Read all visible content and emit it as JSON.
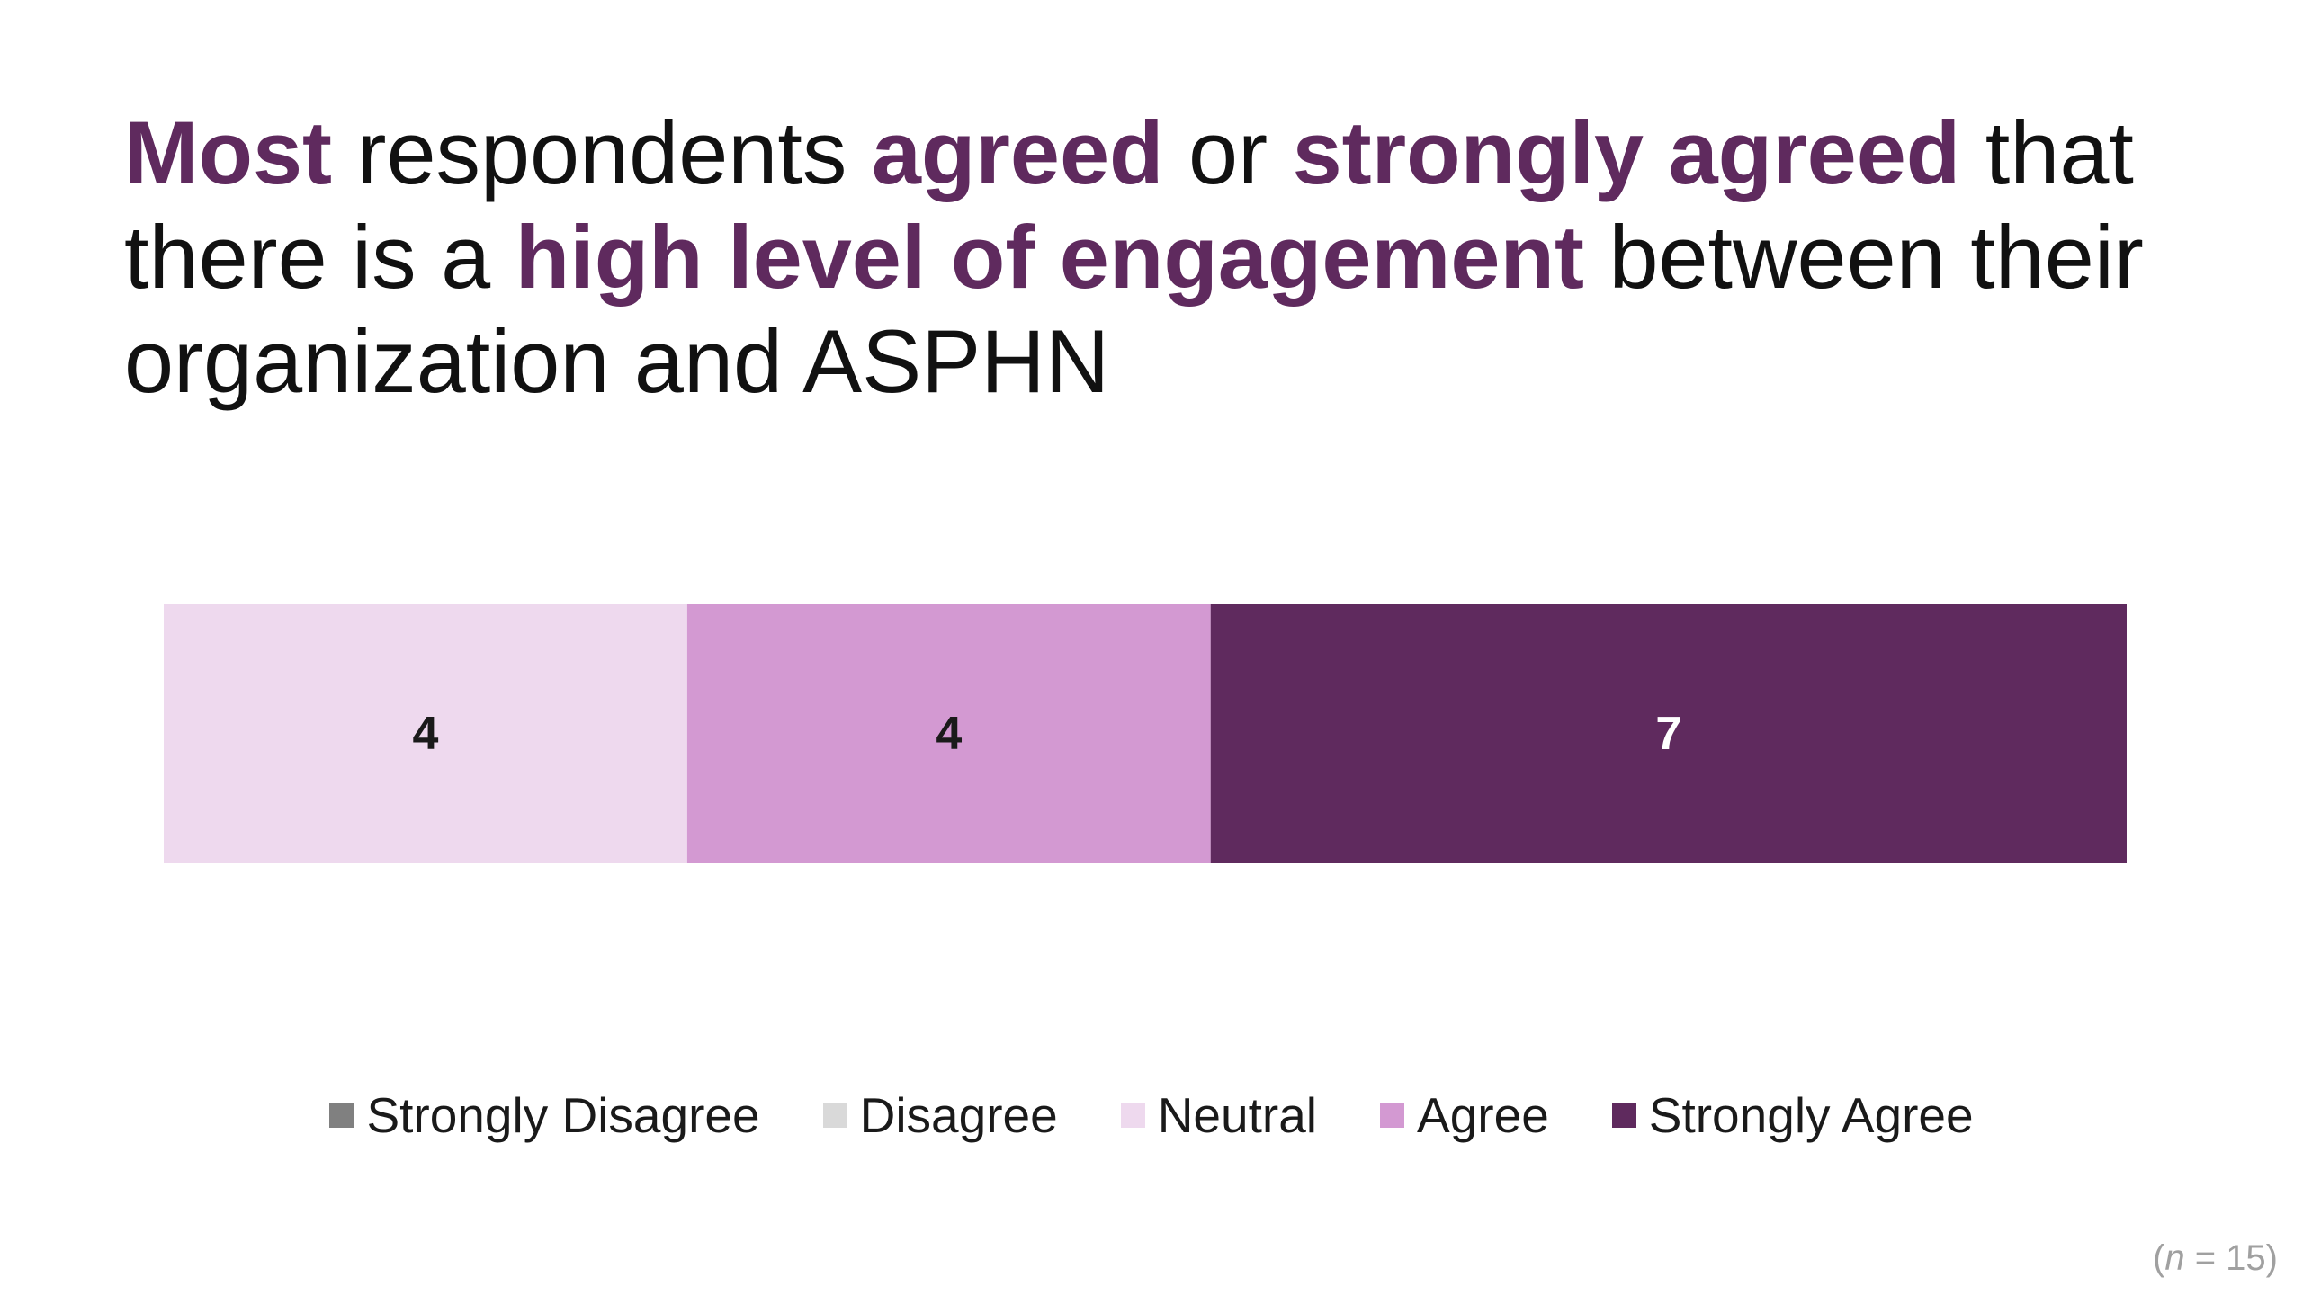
{
  "title": {
    "parts": [
      {
        "text": "Most",
        "emphasis": true
      },
      {
        "text": " respondents ",
        "emphasis": false
      },
      {
        "text": "agreed",
        "emphasis": true
      },
      {
        "text": " or ",
        "emphasis": false
      },
      {
        "text": "strongly agreed",
        "emphasis": true
      },
      {
        "text": " that there is a ",
        "emphasis": false
      },
      {
        "text": "high level of engagement",
        "emphasis": true
      },
      {
        "text": " between their organization and ASPHN",
        "emphasis": false
      }
    ]
  },
  "colors": {
    "emphasis": "#5f2a5e",
    "strongly_disagree": "#808080",
    "disagree": "#d9d9d9",
    "neutral": "#eed9ee",
    "agree": "#d399d2",
    "strongly_agree": "#5f2a5e",
    "label_dark": "#1a1a1a",
    "label_light": "#ffffff"
  },
  "chart_data": {
    "type": "bar",
    "orientation": "horizontal",
    "stacked": true,
    "categories": [
      ""
    ],
    "series": [
      {
        "name": "Strongly Disagree",
        "values": [
          0
        ],
        "color": "#808080"
      },
      {
        "name": "Disagree",
        "values": [
          0
        ],
        "color": "#d9d9d9"
      },
      {
        "name": "Neutral",
        "values": [
          4
        ],
        "color": "#eed9ee"
      },
      {
        "name": "Agree",
        "values": [
          4
        ],
        "color": "#d399d2"
      },
      {
        "name": "Strongly Agree",
        "values": [
          7
        ],
        "color": "#5f2a5e"
      }
    ],
    "xlim": [
      0,
      15
    ],
    "grid": false,
    "legend_position": "bottom",
    "data_labels": true
  },
  "note": {
    "open": "(",
    "var": "n",
    "rest": " = 15)"
  }
}
